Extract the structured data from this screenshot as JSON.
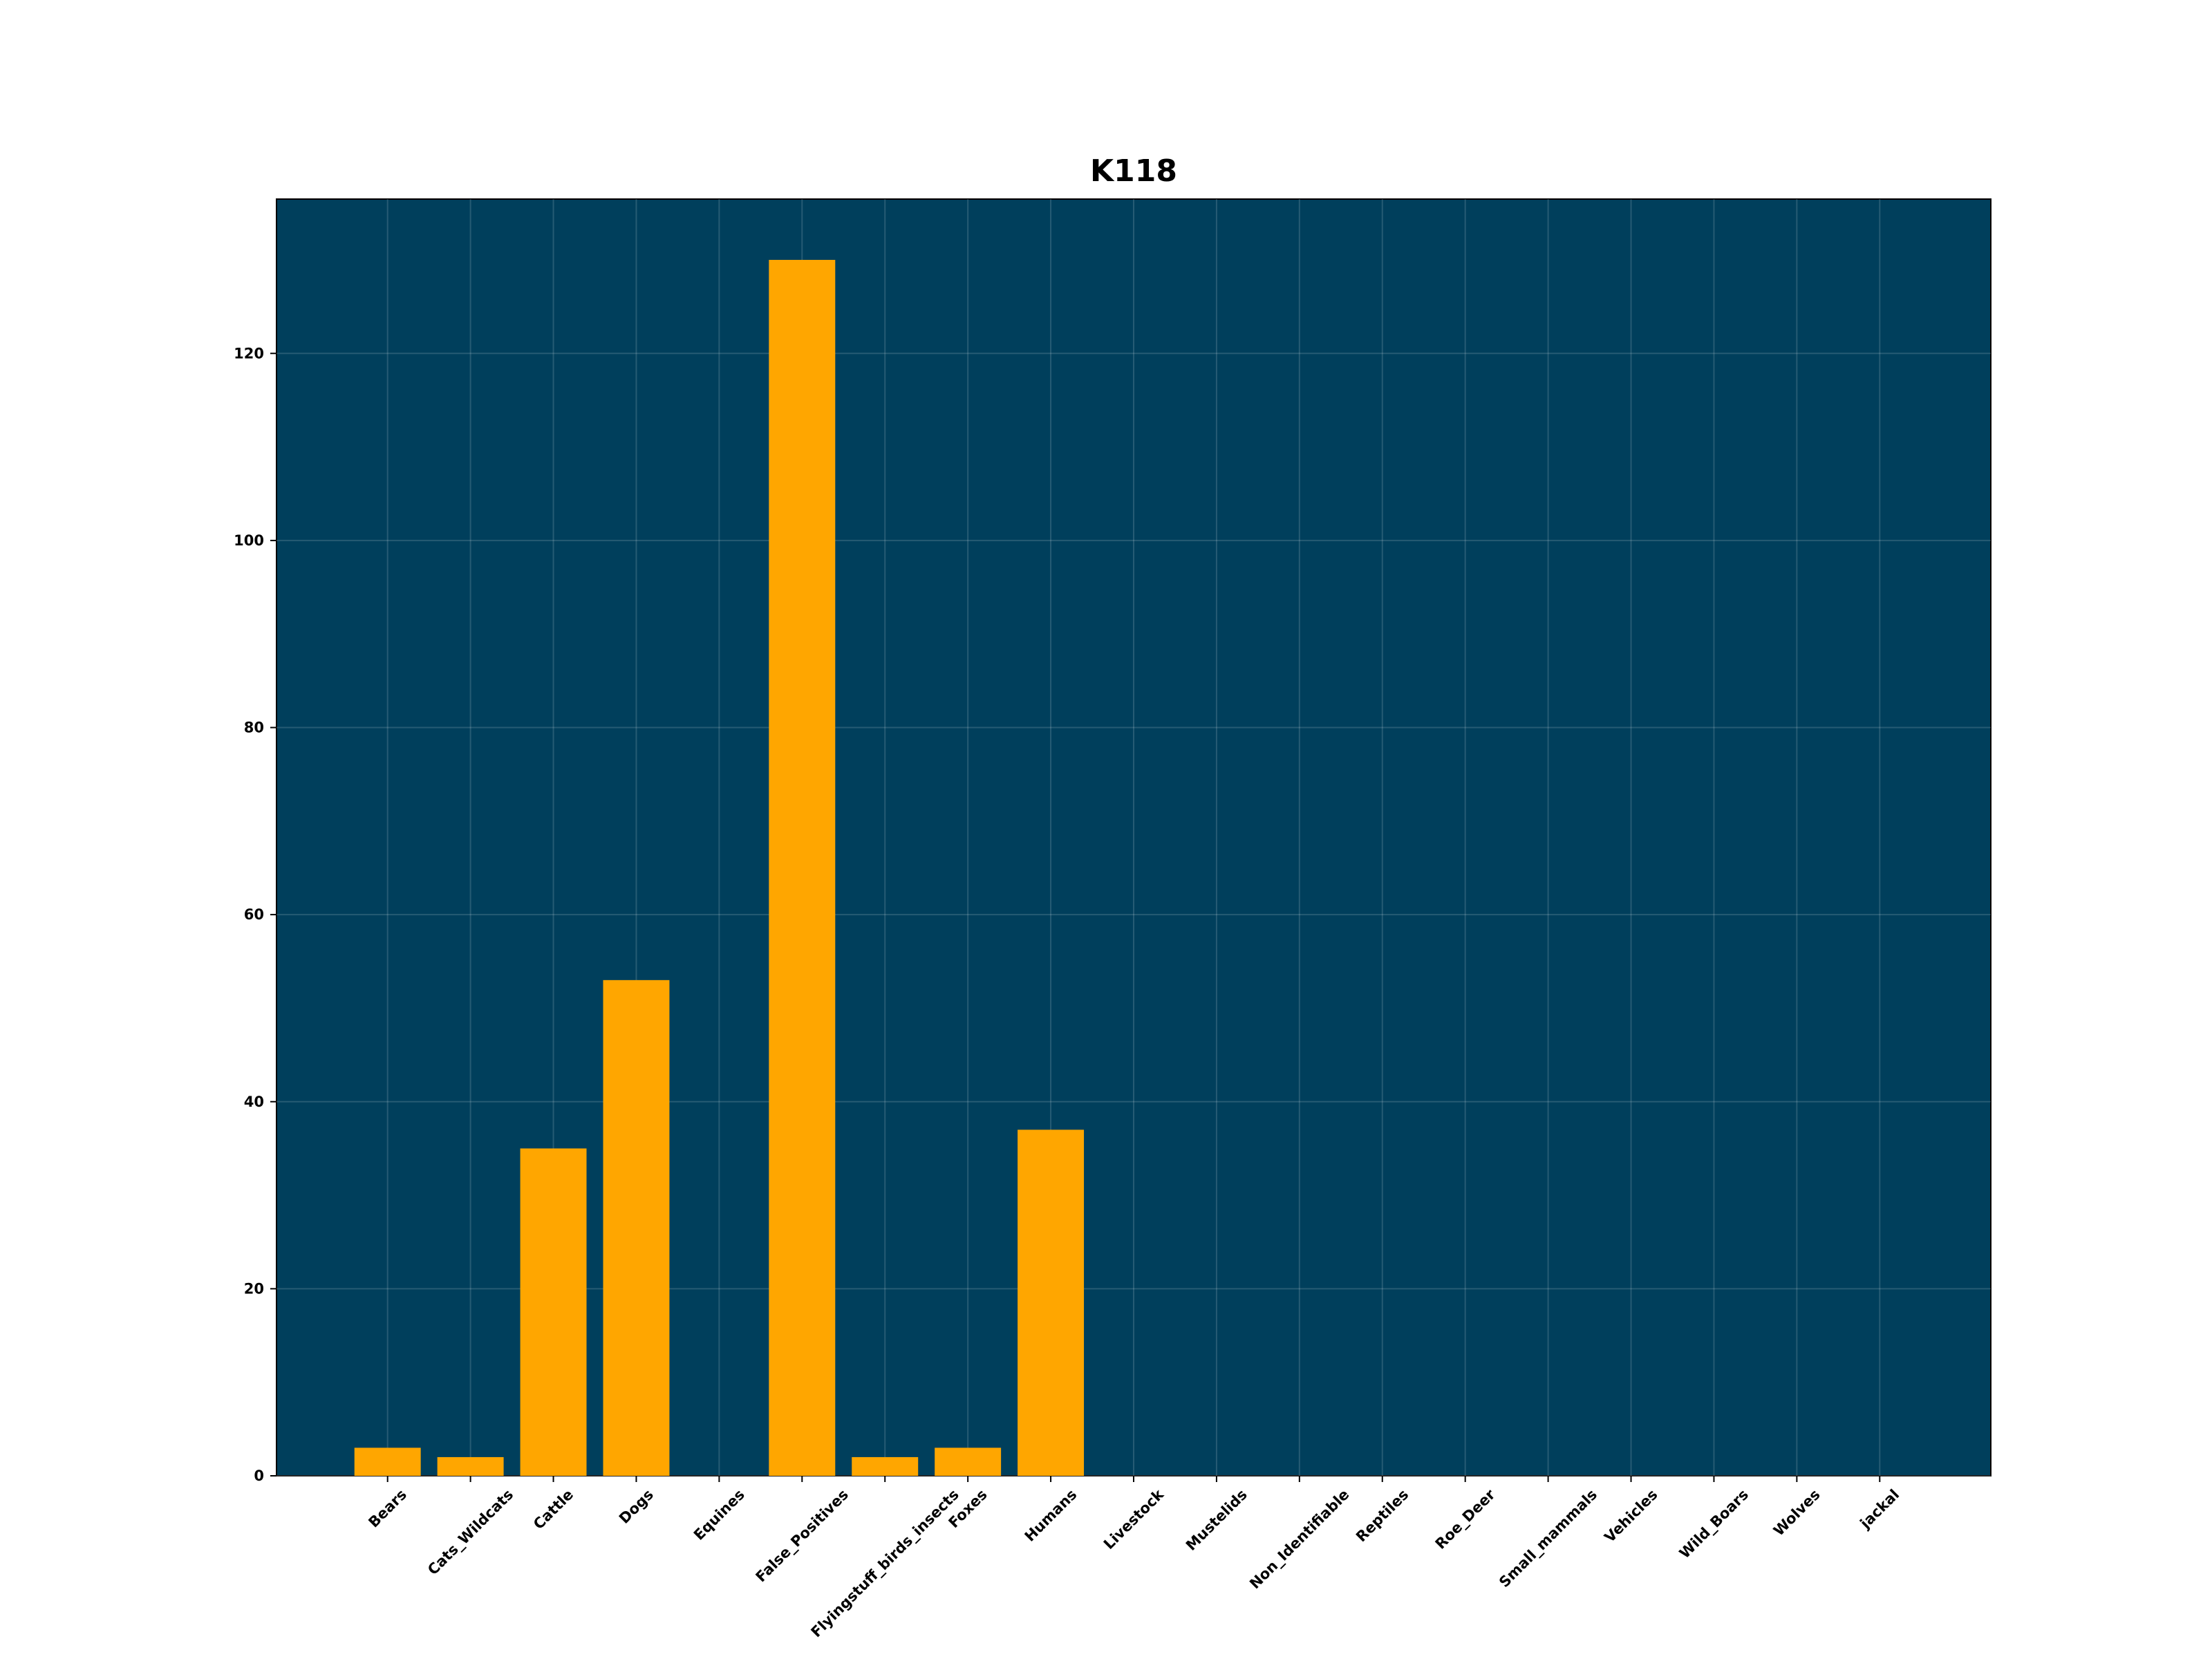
{
  "chart_data": {
    "type": "bar",
    "title": "K118",
    "categories": [
      "Bears",
      "Cats_Wildcats",
      "Cattle",
      "Dogs",
      "Equines",
      "False_Positives",
      "Flyingstuff_birds_insects",
      "Foxes",
      "Humans",
      "Livestock",
      "Mustelids",
      "Non_Identifiable",
      "Reptiles",
      "Roe_Deer",
      "Small_mammals",
      "Vehicles",
      "Wild_Boars",
      "Wolves",
      "jackal"
    ],
    "values": [
      3,
      2,
      35,
      53,
      0,
      130,
      2,
      3,
      37,
      0,
      0,
      0,
      0,
      0,
      0,
      0,
      0,
      0,
      0
    ],
    "color": "#ffa600",
    "background": "#003f5c",
    "ylim": [
      0,
      136.5
    ],
    "yticks": [
      0,
      20,
      40,
      60,
      80,
      100,
      120
    ],
    "grid": true
  }
}
